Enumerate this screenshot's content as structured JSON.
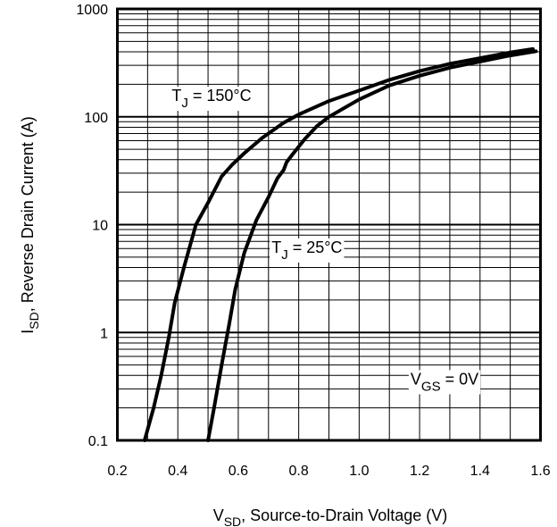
{
  "chart_data": {
    "type": "line",
    "xlabel": {
      "main": "V",
      "sub": "SD",
      "rest": ", Source-to-Drain Voltage (V)"
    },
    "ylabel": {
      "main": "I",
      "sub": "SD",
      "rest": ", Reverse Drain Current (A)"
    },
    "xlim": [
      0.2,
      1.6
    ],
    "ylim": [
      0.1,
      1000
    ],
    "yscale": "log",
    "grid": true,
    "x_ticks": [
      "0.2",
      "0.4",
      "0.6",
      "0.8",
      "1.0",
      "1.2",
      "1.4",
      "1.6"
    ],
    "y_ticks": [
      "0.1",
      "1",
      "10",
      "100",
      "1000"
    ],
    "series": [
      {
        "name": "TJ = 150°C",
        "x": [
          0.29,
          0.32,
          0.345,
          0.37,
          0.39,
          0.42,
          0.46,
          0.5,
          0.545,
          0.58,
          0.62,
          0.68,
          0.75,
          0.8,
          0.9,
          1.0,
          1.1,
          1.2,
          1.3,
          1.4,
          1.5,
          1.575
        ],
        "y": [
          0.1,
          0.2,
          0.4,
          0.9,
          1.9,
          4.0,
          10,
          16,
          28,
          36,
          46,
          64,
          88,
          105,
          140,
          175,
          220,
          265,
          310,
          350,
          395,
          425
        ]
      },
      {
        "name": "TJ = 25°C",
        "x": [
          0.5,
          0.52,
          0.545,
          0.57,
          0.59,
          0.62,
          0.66,
          0.7,
          0.73,
          0.75,
          0.76,
          0.78,
          0.82,
          0.86,
          0.9,
          1.0,
          1.1,
          1.2,
          1.3,
          1.4,
          1.5,
          1.585
        ],
        "y": [
          0.1,
          0.2,
          0.5,
          1.2,
          2.5,
          5.5,
          11,
          18,
          27,
          32,
          38,
          45,
          62,
          82,
          100,
          145,
          195,
          240,
          285,
          325,
          370,
          405
        ]
      }
    ],
    "annotations": [
      {
        "main": "T",
        "sub": "J",
        "rest": " = 150°C",
        "x": 0.38,
        "y": 140
      },
      {
        "main": "T",
        "sub": "J",
        "rest": " = 25°C",
        "x": 0.71,
        "y": 5.5
      },
      {
        "main": "V",
        "sub": "GS",
        "rest": " = 0V",
        "x": 1.17,
        "y": 0.33
      }
    ]
  }
}
